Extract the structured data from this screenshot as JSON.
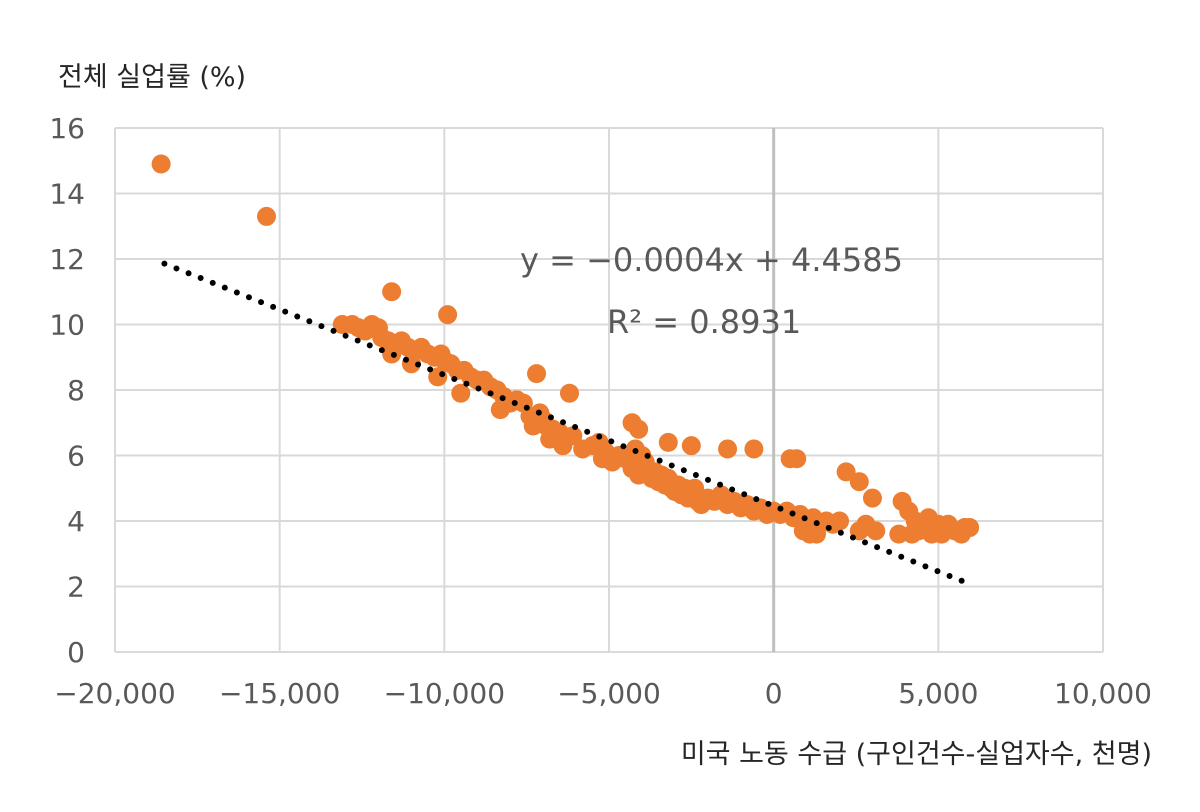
{
  "chart_data": {
    "type": "scatter",
    "title": "",
    "ylabel": "전체 실업률 (%)",
    "xlabel": "미국 노동 수급 (구인건수-실업자수, 천명)",
    "xlim": [
      -20000,
      10000
    ],
    "ylim": [
      0,
      16
    ],
    "x_ticks": [
      -20000,
      -15000,
      -10000,
      -5000,
      0,
      5000,
      10000
    ],
    "x_tick_labels": [
      "−20,000",
      "−15,000",
      "−10,000",
      "−5,000",
      "0",
      "5,000",
      "10,000"
    ],
    "y_ticks": [
      0,
      2,
      4,
      6,
      8,
      10,
      12,
      14,
      16
    ],
    "y_tick_labels": [
      "0",
      "2",
      "4",
      "6",
      "8",
      "10",
      "12",
      "14",
      "16"
    ],
    "grid": true,
    "marker_color": "#ED7D31",
    "trendline_color": "#000000",
    "gridline_color": "#D9D9D9",
    "zero_line_color": "#BFBFBF",
    "trendline": {
      "equation": "y = −0.0004x + 4.4585",
      "r_squared": "R² = 0.8931",
      "slope": -0.0004,
      "intercept": 4.4585,
      "x_range": [
        -18500,
        5800
      ],
      "style": "dotted"
    },
    "points": [
      [
        -18600,
        14.9
      ],
      [
        -15400,
        13.3
      ],
      [
        -11600,
        11.0
      ],
      [
        -9900,
        10.3
      ],
      [
        -13100,
        10.0
      ],
      [
        -12800,
        10.0
      ],
      [
        -12600,
        9.9
      ],
      [
        -12400,
        9.8
      ],
      [
        -12200,
        10.0
      ],
      [
        -12000,
        9.9
      ],
      [
        -11900,
        9.6
      ],
      [
        -11700,
        9.5
      ],
      [
        -11500,
        9.3
      ],
      [
        -11300,
        9.5
      ],
      [
        -11100,
        9.3
      ],
      [
        -10900,
        9.2
      ],
      [
        -10700,
        9.3
      ],
      [
        -10500,
        9.1
      ],
      [
        -10300,
        9.0
      ],
      [
        -10100,
        9.1
      ],
      [
        -10000,
        8.9
      ],
      [
        -11000,
        8.8
      ],
      [
        -11600,
        9.1
      ],
      [
        -10200,
        8.4
      ],
      [
        -9800,
        8.8
      ],
      [
        -9600,
        8.6
      ],
      [
        -9400,
        8.6
      ],
      [
        -9200,
        8.4
      ],
      [
        -9000,
        8.3
      ],
      [
        -8800,
        8.3
      ],
      [
        -8600,
        8.1
      ],
      [
        -8400,
        8.0
      ],
      [
        -8200,
        7.8
      ],
      [
        -8000,
        7.6
      ],
      [
        -7800,
        7.7
      ],
      [
        -7600,
        7.6
      ],
      [
        -9500,
        7.9
      ],
      [
        -8300,
        7.4
      ],
      [
        -7200,
        8.5
      ],
      [
        -6200,
        7.9
      ],
      [
        -7400,
        7.2
      ],
      [
        -7100,
        7.3
      ],
      [
        -7000,
        7.1
      ],
      [
        -6900,
        6.9
      ],
      [
        -6700,
        6.8
      ],
      [
        -6500,
        6.7
      ],
      [
        -7300,
        6.9
      ],
      [
        -6800,
        6.5
      ],
      [
        -6400,
        6.3
      ],
      [
        -6100,
        6.6
      ],
      [
        -5800,
        6.2
      ],
      [
        -5500,
        6.3
      ],
      [
        -5300,
        6.4
      ],
      [
        -5100,
        6.1
      ],
      [
        -5200,
        5.9
      ],
      [
        -4900,
        5.8
      ],
      [
        -4700,
        6.0
      ],
      [
        -4500,
        5.9
      ],
      [
        -4300,
        7.0
      ],
      [
        -4100,
        6.8
      ],
      [
        -4200,
        6.2
      ],
      [
        -4000,
        6.0
      ],
      [
        -4300,
        5.6
      ],
      [
        -4100,
        5.4
      ],
      [
        -3900,
        5.8
      ],
      [
        -3800,
        5.5
      ],
      [
        -3700,
        5.3
      ],
      [
        -3600,
        5.5
      ],
      [
        -3500,
        5.2
      ],
      [
        -3400,
        5.4
      ],
      [
        -3300,
        5.1
      ],
      [
        -3200,
        5.3
      ],
      [
        -3100,
        5.0
      ],
      [
        -3000,
        4.9
      ],
      [
        -2900,
        5.1
      ],
      [
        -2800,
        4.8
      ],
      [
        -2700,
        5.0
      ],
      [
        -2600,
        4.7
      ],
      [
        -2500,
        4.8
      ],
      [
        -2400,
        5.0
      ],
      [
        -2300,
        4.6
      ],
      [
        -2200,
        4.5
      ],
      [
        -3200,
        6.4
      ],
      [
        -2500,
        6.3
      ],
      [
        -1400,
        6.2
      ],
      [
        -600,
        6.2
      ],
      [
        500,
        5.9
      ],
      [
        700,
        5.9
      ],
      [
        -2000,
        4.7
      ],
      [
        -1800,
        4.6
      ],
      [
        -1600,
        4.8
      ],
      [
        -1400,
        4.5
      ],
      [
        -1200,
        4.6
      ],
      [
        -1000,
        4.4
      ],
      [
        -800,
        4.5
      ],
      [
        -600,
        4.3
      ],
      [
        -400,
        4.4
      ],
      [
        -200,
        4.2
      ],
      [
        0,
        4.3
      ],
      [
        200,
        4.2
      ],
      [
        400,
        4.3
      ],
      [
        600,
        4.1
      ],
      [
        800,
        4.2
      ],
      [
        1000,
        4.0
      ],
      [
        1200,
        4.1
      ],
      [
        1400,
        3.9
      ],
      [
        900,
        3.7
      ],
      [
        1100,
        3.6
      ],
      [
        1300,
        3.6
      ],
      [
        1600,
        4.0
      ],
      [
        1800,
        3.9
      ],
      [
        2000,
        4.0
      ],
      [
        2200,
        5.5
      ],
      [
        2600,
        5.2
      ],
      [
        3000,
        4.7
      ],
      [
        2600,
        3.7
      ],
      [
        2800,
        3.9
      ],
      [
        3100,
        3.7
      ],
      [
        3800,
        3.6
      ],
      [
        3900,
        4.6
      ],
      [
        4100,
        4.3
      ],
      [
        4300,
        4.0
      ],
      [
        4400,
        3.7
      ],
      [
        4600,
        3.8
      ],
      [
        4700,
        4.1
      ],
      [
        4800,
        3.6
      ],
      [
        4900,
        3.7
      ],
      [
        5000,
        3.9
      ],
      [
        5100,
        3.6
      ],
      [
        5200,
        3.8
      ],
      [
        5300,
        3.9
      ],
      [
        5500,
        3.7
      ],
      [
        5700,
        3.6
      ],
      [
        5800,
        3.8
      ],
      [
        5950,
        3.8
      ],
      [
        4200,
        3.6
      ]
    ]
  }
}
